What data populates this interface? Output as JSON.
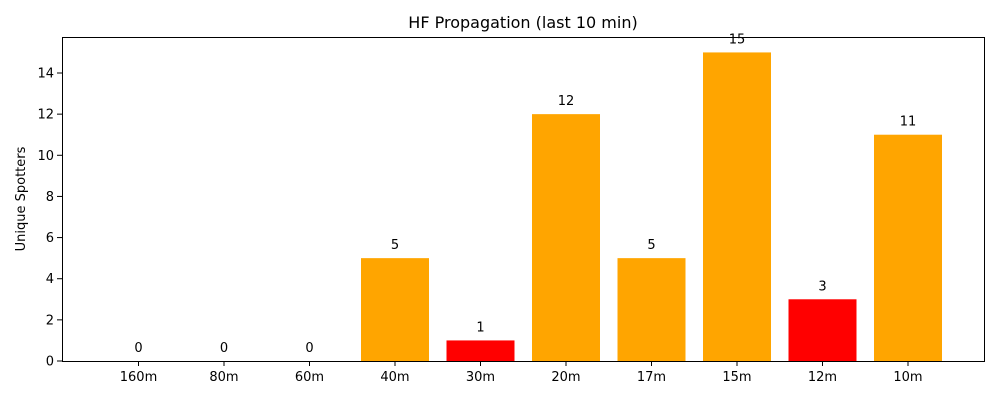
{
  "chart_data": {
    "type": "bar",
    "title": "HF Propagation (last 10 min)",
    "xlabel": "",
    "ylabel": "Unique Spotters",
    "categories": [
      "160m",
      "80m",
      "60m",
      "40m",
      "30m",
      "20m",
      "17m",
      "15m",
      "12m",
      "10m"
    ],
    "values": [
      0,
      0,
      0,
      5,
      1,
      12,
      5,
      15,
      3,
      11
    ],
    "bar_colors": [
      "#ffa500",
      "#ffa500",
      "#ffa500",
      "#ffa500",
      "#ff0000",
      "#ffa500",
      "#ffa500",
      "#ffa500",
      "#ff0000",
      "#ffa500"
    ],
    "data_labels": [
      "0",
      "0",
      "0",
      "5",
      "1",
      "12",
      "5",
      "15",
      "3",
      "11"
    ],
    "yticks": [
      0,
      2,
      4,
      6,
      8,
      10,
      12,
      14
    ],
    "ylim": [
      0,
      15.75
    ],
    "grid": false,
    "legend": "none"
  }
}
